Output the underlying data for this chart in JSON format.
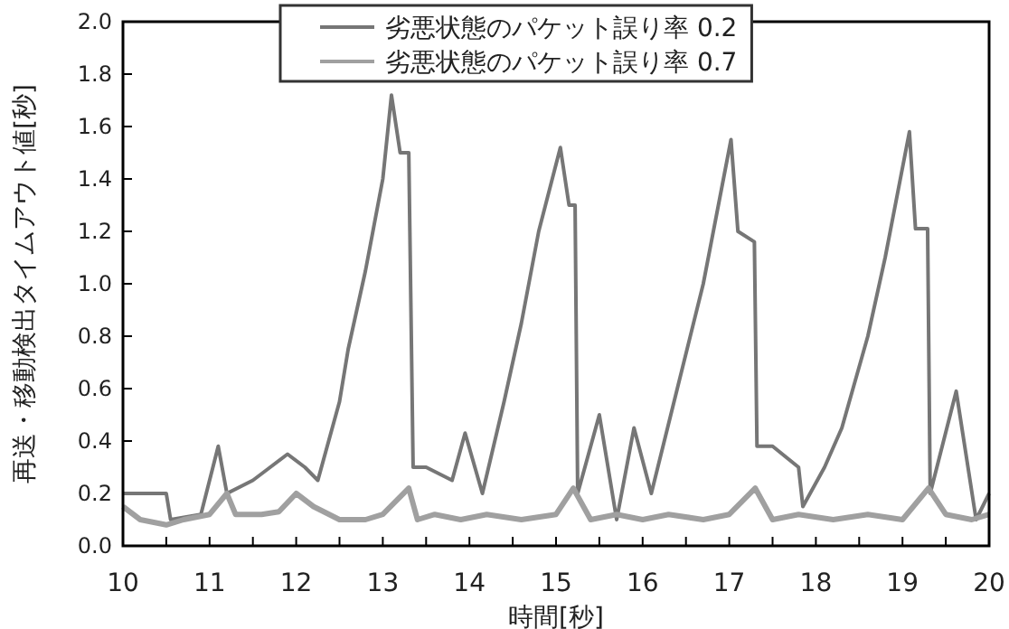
{
  "chart_data": {
    "type": "line",
    "xlabel": "時間[秒]",
    "ylabel": "再送・移動検出タイムアウト値[秒]",
    "xlim": [
      10,
      20
    ],
    "ylim": [
      0,
      2
    ],
    "xticks": [
      10,
      {
        "value": 10.5,
        "label": null
      },
      11,
      {
        "value": 11.5,
        "label": null
      },
      12,
      {
        "value": 12.5,
        "label": null
      },
      13,
      {
        "value": 13.5,
        "label": null
      },
      14,
      {
        "value": 14.5,
        "label": null
      },
      15,
      {
        "value": 15.5,
        "label": null
      },
      16,
      {
        "value": 16.5,
        "label": null
      },
      17,
      {
        "value": 17.5,
        "label": null
      },
      18,
      {
        "value": 18.5,
        "label": null
      },
      19,
      {
        "value": 19.5,
        "label": null
      },
      20
    ],
    "yticks": [
      {
        "value": 0,
        "label": "0.0"
      },
      0.2,
      0.4,
      0.6,
      0.8,
      {
        "value": 1,
        "label": "1.0"
      },
      1.2,
      1.4,
      1.6,
      1.8,
      {
        "value": 2,
        "label": "2.0"
      }
    ],
    "legend": "top",
    "grid": false,
    "line_style": "solid",
    "marker": "none",
    "series": [
      {
        "name": "劣悪状態のパケット誤り率 0.2",
        "color": "#767676",
        "x": [
          10,
          10.5,
          10.55,
          10.9,
          11.1,
          11.2,
          11.5,
          11.7,
          11.9,
          12.1,
          12.25,
          12.5,
          12.6,
          12.8,
          13.0,
          13.1,
          13.2,
          13.3,
          13.35,
          13.5,
          13.8,
          13.95,
          14.15,
          14.4,
          14.6,
          14.8,
          15.05,
          15.15,
          15.22,
          15.25,
          15.5,
          15.7,
          15.9,
          16.1,
          16.4,
          16.7,
          17.02,
          17.1,
          17.29,
          17.32,
          17.5,
          17.8,
          17.85,
          18.1,
          18.3,
          18.6,
          18.8,
          19.08,
          19.15,
          19.29,
          19.32,
          19.62,
          19.85,
          20
        ],
        "values": [
          0.2,
          0.2,
          0.1,
          0.12,
          0.38,
          0.2,
          0.25,
          0.3,
          0.35,
          0.3,
          0.25,
          0.55,
          0.75,
          1.05,
          1.4,
          1.72,
          1.5,
          1.5,
          0.3,
          0.3,
          0.25,
          0.43,
          0.2,
          0.55,
          0.85,
          1.2,
          1.52,
          1.3,
          1.3,
          0.2,
          0.5,
          0.1,
          0.45,
          0.2,
          0.6,
          1.0,
          1.55,
          1.2,
          1.16,
          0.38,
          0.38,
          0.3,
          0.15,
          0.3,
          0.45,
          0.8,
          1.1,
          1.58,
          1.21,
          1.21,
          0.2,
          0.59,
          0.1,
          0.2
        ]
      },
      {
        "name": "劣悪状態のパケット誤り率 0.7",
        "color": "#a0a0a0",
        "x": [
          10,
          10.2,
          10.5,
          10.7,
          11.0,
          11.2,
          11.3,
          11.6,
          11.8,
          12.0,
          12.2,
          12.5,
          12.8,
          13.0,
          13.3,
          13.4,
          13.6,
          13.9,
          14.2,
          14.6,
          15.0,
          15.2,
          15.4,
          15.7,
          16.0,
          16.3,
          16.7,
          17.0,
          17.3,
          17.5,
          17.8,
          18.2,
          18.6,
          19.0,
          19.3,
          19.5,
          19.8,
          20
        ],
        "values": [
          0.15,
          0.1,
          0.08,
          0.1,
          0.12,
          0.2,
          0.12,
          0.12,
          0.13,
          0.2,
          0.15,
          0.1,
          0.1,
          0.12,
          0.22,
          0.1,
          0.12,
          0.1,
          0.12,
          0.1,
          0.12,
          0.22,
          0.1,
          0.12,
          0.1,
          0.12,
          0.1,
          0.12,
          0.22,
          0.1,
          0.12,
          0.1,
          0.12,
          0.1,
          0.22,
          0.12,
          0.1,
          0.12
        ]
      }
    ]
  }
}
